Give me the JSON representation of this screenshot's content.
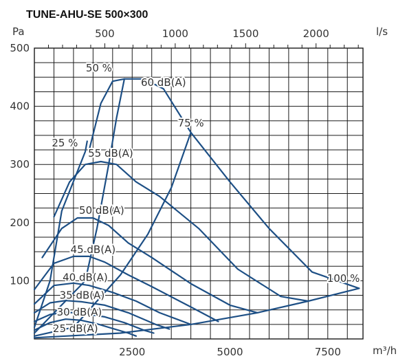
{
  "chart_data": {
    "type": "line",
    "title": "TUNE-AHU-SE 500×300",
    "y_unit": "Pa",
    "x_unit_bottom": "m³/h",
    "x_unit_top": "l/s",
    "ylim": [
      0,
      500
    ],
    "xlim_m3h": [
      0,
      8400
    ],
    "y_ticks": [
      100,
      200,
      300,
      400,
      500
    ],
    "x_ticks_bottom": [
      2500,
      5000,
      7500
    ],
    "x_ticks_top": [
      500,
      1000,
      1500,
      2000
    ],
    "grid": true,
    "colors": {
      "curve": "#1d4f85",
      "grid": "#1a1a1a",
      "text": "#333333"
    },
    "series": [
      {
        "name": "25 %",
        "points": [
          [
            0,
            20
          ],
          [
            400,
            100
          ],
          [
            700,
            220
          ],
          [
            1300,
            322
          ],
          [
            1350,
            340
          ]
        ]
      },
      {
        "name": "50 %",
        "points": [
          [
            0,
            10
          ],
          [
            1300,
            100
          ],
          [
            1600,
            190
          ],
          [
            1900,
            300
          ],
          [
            2100,
            380
          ],
          [
            2300,
            447
          ]
        ]
      },
      {
        "name": "75 %",
        "points": [
          [
            0,
            5
          ],
          [
            1000,
            20
          ],
          [
            2200,
            110
          ],
          [
            2900,
            180
          ],
          [
            3500,
            260
          ],
          [
            4000,
            355
          ]
        ]
      },
      {
        "name": "100 %",
        "points": [
          [
            0,
            2
          ],
          [
            2200,
            10
          ],
          [
            4000,
            25
          ],
          [
            5700,
            45
          ],
          [
            7000,
            65
          ],
          [
            8300,
            87
          ]
        ]
      },
      {
        "name": "60 dB(A)",
        "points": [
          [
            1400,
            325
          ],
          [
            1700,
            405
          ],
          [
            2000,
            443
          ],
          [
            2300,
            447
          ],
          [
            2800,
            447
          ],
          [
            3300,
            430
          ],
          [
            4000,
            355
          ],
          [
            5000,
            270
          ],
          [
            6000,
            190
          ],
          [
            7100,
            115
          ],
          [
            8300,
            87
          ]
        ]
      },
      {
        "name": "55 dB(A)",
        "points": [
          [
            500,
            210
          ],
          [
            900,
            270
          ],
          [
            1300,
            300
          ],
          [
            1700,
            305
          ],
          [
            2100,
            300
          ],
          [
            2600,
            270
          ],
          [
            3200,
            245
          ],
          [
            4200,
            190
          ],
          [
            5200,
            120
          ],
          [
            6300,
            73
          ],
          [
            7000,
            65
          ]
        ]
      },
      {
        "name": "50 dB(A)",
        "points": [
          [
            200,
            140
          ],
          [
            700,
            190
          ],
          [
            1100,
            208
          ],
          [
            1500,
            208
          ],
          [
            1900,
            195
          ],
          [
            2400,
            165
          ],
          [
            3000,
            140
          ],
          [
            4000,
            95
          ],
          [
            5000,
            58
          ],
          [
            5700,
            45
          ]
        ]
      },
      {
        "name": "45 dB(A)",
        "points": [
          [
            0,
            85
          ],
          [
            500,
            130
          ],
          [
            1000,
            142
          ],
          [
            1400,
            142
          ],
          [
            1800,
            132
          ],
          [
            2400,
            110
          ],
          [
            3000,
            90
          ],
          [
            4000,
            55
          ],
          [
            4700,
            30
          ]
        ]
      },
      {
        "name": "40 dB(A)",
        "points": [
          [
            0,
            60
          ],
          [
            500,
            92
          ],
          [
            1000,
            96
          ],
          [
            1400,
            92
          ],
          [
            2000,
            80
          ],
          [
            2600,
            65
          ],
          [
            3200,
            45
          ],
          [
            4000,
            25
          ]
        ]
      },
      {
        "name": "35 dB(A)",
        "points": [
          [
            0,
            45
          ],
          [
            400,
            62
          ],
          [
            800,
            66
          ],
          [
            1200,
            64
          ],
          [
            1800,
            58
          ],
          [
            2400,
            45
          ],
          [
            3100,
            25
          ],
          [
            3450,
            17
          ]
        ]
      },
      {
        "name": "30 dB(A)",
        "points": [
          [
            0,
            30
          ],
          [
            400,
            42
          ],
          [
            800,
            46
          ],
          [
            1200,
            44
          ],
          [
            1800,
            38
          ],
          [
            2300,
            28
          ],
          [
            2800,
            15
          ],
          [
            3050,
            10
          ]
        ]
      },
      {
        "name": "25 dB(A)",
        "points": [
          [
            0,
            15
          ],
          [
            400,
            28
          ],
          [
            800,
            34
          ],
          [
            1200,
            32
          ],
          [
            1600,
            26
          ],
          [
            2000,
            18
          ],
          [
            2400,
            10
          ],
          [
            2600,
            5
          ]
        ]
      }
    ],
    "annotations": [
      {
        "text": "50 %",
        "x": 1650,
        "y": 460
      },
      {
        "text": "60 dB(A)",
        "x": 3300,
        "y": 435
      },
      {
        "text": "75 %",
        "x": 4000,
        "y": 365
      },
      {
        "text": "25 %",
        "x": 780,
        "y": 331
      },
      {
        "text": "55 dB(A)",
        "x": 1950,
        "y": 313
      },
      {
        "text": "50 dB(A)",
        "x": 1720,
        "y": 215
      },
      {
        "text": "45 dB(A)",
        "x": 1500,
        "y": 148
      },
      {
        "text": "40 dB(A)",
        "x": 1300,
        "y": 100
      },
      {
        "text": "100 %",
        "x": 7900,
        "y": 98
      },
      {
        "text": "35 dB(A)",
        "x": 1220,
        "y": 69
      },
      {
        "text": "30 dB(A)",
        "x": 1150,
        "y": 40
      },
      {
        "text": "25 dB(A)",
        "x": 1050,
        "y": 12
      }
    ]
  }
}
